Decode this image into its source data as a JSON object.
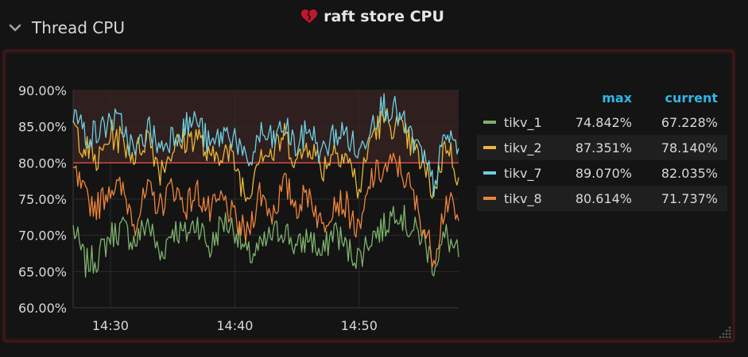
{
  "row": {
    "title": "Thread CPU"
  },
  "panel": {
    "title": "raft store CPU"
  },
  "legend": {
    "columns": {
      "max": "max",
      "current": "current"
    },
    "series": [
      {
        "name": "tikv_1",
        "max": "74.842%",
        "current": "67.228%",
        "color": "#7eb26d"
      },
      {
        "name": "tikv_2",
        "max": "87.351%",
        "current": "78.140%",
        "color": "#eab839"
      },
      {
        "name": "tikv_7",
        "max": "89.070%",
        "current": "82.035%",
        "color": "#6ed0e0"
      },
      {
        "name": "tikv_8",
        "max": "80.614%",
        "current": "71.737%",
        "color": "#ef843c"
      }
    ]
  },
  "chart_data": {
    "type": "line",
    "title": "raft store CPU",
    "xlabel": "",
    "ylabel": "",
    "ylim": [
      60,
      90
    ],
    "xlim": [
      "14:27",
      "14:58"
    ],
    "ytick_labels": [
      "90.00%",
      "85.00%",
      "80.00%",
      "75.00%",
      "70.00%",
      "65.00%",
      "60.00%"
    ],
    "yticks": [
      90,
      85,
      80,
      75,
      70,
      65,
      60
    ],
    "xtick_labels": [
      "14:30",
      "14:40",
      "14:50"
    ],
    "xticks": [
      "14:30",
      "14:40",
      "14:50"
    ],
    "threshold": 80,
    "grid": true,
    "legend_position": "right",
    "x": [
      "14:27",
      "14:28",
      "14:29",
      "14:30",
      "14:31",
      "14:32",
      "14:33",
      "14:34",
      "14:35",
      "14:36",
      "14:37",
      "14:38",
      "14:39",
      "14:40",
      "14:41",
      "14:42",
      "14:43",
      "14:44",
      "14:45",
      "14:46",
      "14:47",
      "14:48",
      "14:49",
      "14:50",
      "14:51",
      "14:52",
      "14:53",
      "14:54",
      "14:55",
      "14:56",
      "14:57",
      "14:58"
    ],
    "series": [
      {
        "name": "tikv_1",
        "values": [
          71,
          66,
          67,
          70,
          71,
          69,
          72,
          67,
          71,
          70,
          72,
          68,
          72,
          71,
          67,
          68,
          70,
          71,
          68,
          70,
          67,
          71,
          68,
          67,
          70,
          71,
          74,
          71,
          70,
          66,
          70,
          67
        ]
      },
      {
        "name": "tikv_2",
        "values": [
          85,
          82,
          80,
          84,
          83,
          81,
          84,
          79,
          82,
          83,
          84,
          80,
          82,
          80,
          75,
          82,
          81,
          84,
          80,
          83,
          79,
          82,
          81,
          76,
          84,
          86,
          85,
          83,
          80,
          76,
          83,
          78
        ]
      },
      {
        "name": "tikv_7",
        "values": [
          87,
          84,
          84,
          86,
          85,
          81,
          85,
          82,
          84,
          85,
          86,
          82,
          84,
          84,
          79,
          84,
          83,
          85,
          82,
          85,
          81,
          84,
          84,
          81,
          86,
          88,
          87,
          84,
          81,
          77,
          84,
          82
        ]
      },
      {
        "name": "tikv_8",
        "values": [
          79,
          75,
          74,
          77,
          76,
          72,
          76,
          74,
          77,
          74,
          76,
          73,
          75,
          72,
          70,
          76,
          73,
          77,
          74,
          76,
          71,
          75,
          74,
          70,
          78,
          79,
          80,
          77,
          72,
          67,
          75,
          72
        ]
      }
    ]
  }
}
